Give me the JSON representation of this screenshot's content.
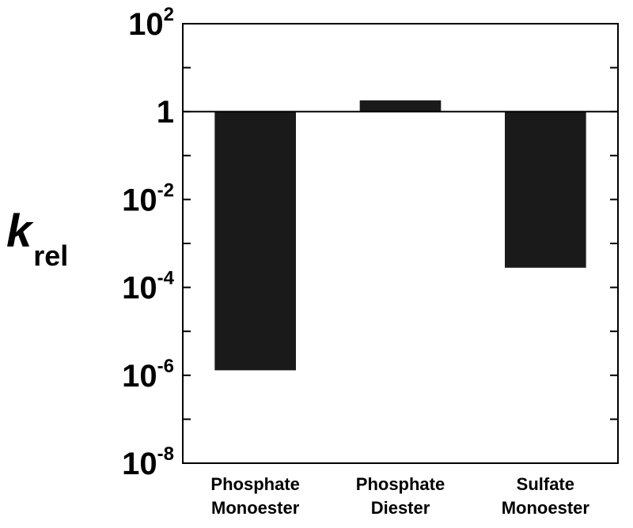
{
  "chart_data": {
    "type": "bar",
    "yscale": "log",
    "ylabel": {
      "main": "k",
      "sub": "rel"
    },
    "ylim": [
      1e-08,
      100
    ],
    "baseline": 1,
    "yticks": [
      {
        "value": 100,
        "base": "10",
        "exp": "2"
      },
      {
        "value": 1,
        "base": "1",
        "exp": ""
      },
      {
        "value": 0.01,
        "base": "10",
        "exp": "-2"
      },
      {
        "value": 0.0001,
        "base": "10",
        "exp": "-4"
      },
      {
        "value": 1e-06,
        "base": "10",
        "exp": "-6"
      },
      {
        "value": 1e-08,
        "base": "10",
        "exp": "-8"
      }
    ],
    "categories": [
      {
        "line1": "Phosphate",
        "line2": "Monoester"
      },
      {
        "line1": "Phosphate",
        "line2": "Diester"
      },
      {
        "line1": "Sulfate",
        "line2": "Monoester"
      }
    ],
    "values": [
      1.3e-06,
      1.8,
      0.00028
    ],
    "bar_color": "#1a1a1a",
    "grid": false
  }
}
